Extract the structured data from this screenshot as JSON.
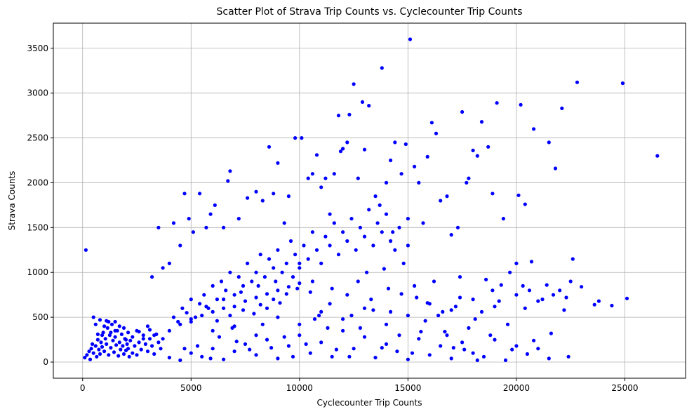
{
  "chart_data": {
    "type": "scatter",
    "title": "Scatter Plot of Strava Trip Counts vs. Cyclecounter Trip Counts",
    "xlabel": "Cyclecounter Trip Counts",
    "ylabel": "Strava Counts",
    "xlim": [
      -1350,
      27800
    ],
    "ylim": [
      -180,
      3780
    ],
    "x_ticks": [
      0,
      5000,
      10000,
      15000,
      20000,
      25000
    ],
    "x_tick_labels": [
      "0",
      "5000",
      "10000",
      "15000",
      "20000",
      "25000"
    ],
    "y_ticks": [
      0,
      500,
      1000,
      1500,
      2000,
      2500,
      3000,
      3500
    ],
    "y_tick_labels": [
      "0",
      "500",
      "1000",
      "1500",
      "2000",
      "2500",
      "3000",
      "3500"
    ],
    "grid": true,
    "marker_color": "#0000ff",
    "points": [
      [
        150,
        1250
      ],
      [
        500,
        500
      ],
      [
        900,
        300
      ],
      [
        1200,
        450
      ],
      [
        1500,
        350
      ],
      [
        2000,
        250
      ],
      [
        2500,
        350
      ],
      [
        3000,
        400
      ],
      [
        3200,
        950
      ],
      [
        3500,
        1500
      ],
      [
        3700,
        1050
      ],
      [
        4000,
        1100
      ],
      [
        4200,
        1550
      ],
      [
        4500,
        1300
      ],
      [
        4700,
        1880
      ],
      [
        4900,
        1600
      ],
      [
        5100,
        1450
      ],
      [
        5400,
        1880
      ],
      [
        5700,
        1500
      ],
      [
        5900,
        1650
      ],
      [
        6100,
        1750
      ],
      [
        6500,
        1500
      ],
      [
        6700,
        2020
      ],
      [
        6800,
        2130
      ],
      [
        7200,
        1600
      ],
      [
        7600,
        1830
      ],
      [
        8000,
        1900
      ],
      [
        8300,
        1800
      ],
      [
        8600,
        2400
      ],
      [
        8800,
        1880
      ],
      [
        9000,
        2220
      ],
      [
        9300,
        1550
      ],
      [
        9500,
        1850
      ],
      [
        9800,
        2500
      ],
      [
        10000,
        1100
      ],
      [
        10100,
        2500
      ],
      [
        10400,
        2050
      ],
      [
        10600,
        2100
      ],
      [
        10800,
        2310
      ],
      [
        11000,
        1950
      ],
      [
        11200,
        2050
      ],
      [
        11400,
        1650
      ],
      [
        11600,
        2100
      ],
      [
        11800,
        2750
      ],
      [
        11900,
        2350
      ],
      [
        12000,
        2380
      ],
      [
        12200,
        2450
      ],
      [
        12300,
        2760
      ],
      [
        12500,
        3100
      ],
      [
        12700,
        2050
      ],
      [
        12900,
        2900
      ],
      [
        13000,
        2370
      ],
      [
        13200,
        2860
      ],
      [
        13500,
        1850
      ],
      [
        13700,
        1750
      ],
      [
        13800,
        3280
      ],
      [
        14000,
        2000
      ],
      [
        14200,
        2250
      ],
      [
        14300,
        1450
      ],
      [
        14400,
        2450
      ],
      [
        14700,
        2100
      ],
      [
        14900,
        2430
      ],
      [
        15000,
        1600
      ],
      [
        15100,
        3600
      ],
      [
        15300,
        2180
      ],
      [
        15500,
        2000
      ],
      [
        15700,
        1550
      ],
      [
        15900,
        2290
      ],
      [
        16100,
        2670
      ],
      [
        16300,
        2550
      ],
      [
        16500,
        1800
      ],
      [
        16800,
        1850
      ],
      [
        17000,
        1420
      ],
      [
        17300,
        1500
      ],
      [
        17500,
        2790
      ],
      [
        17700,
        2000
      ],
      [
        17800,
        2050
      ],
      [
        18000,
        2360
      ],
      [
        18200,
        2300
      ],
      [
        18400,
        2680
      ],
      [
        18700,
        2400
      ],
      [
        18900,
        1880
      ],
      [
        19100,
        2890
      ],
      [
        19400,
        1600
      ],
      [
        20000,
        1100
      ],
      [
        20100,
        1860
      ],
      [
        20200,
        2870
      ],
      [
        20400,
        1760
      ],
      [
        20800,
        2600
      ],
      [
        21500,
        2450
      ],
      [
        21800,
        2160
      ],
      [
        22100,
        2830
      ],
      [
        22800,
        3120
      ],
      [
        24900,
        3110
      ],
      [
        26500,
        2300
      ],
      [
        100,
        50
      ],
      [
        200,
        80
      ],
      [
        300,
        120
      ],
      [
        350,
        30
      ],
      [
        400,
        150
      ],
      [
        450,
        200
      ],
      [
        500,
        100
      ],
      [
        600,
        180
      ],
      [
        650,
        60
      ],
      [
        700,
        250
      ],
      [
        750,
        140
      ],
      [
        800,
        90
      ],
      [
        850,
        220
      ],
      [
        900,
        170
      ],
      [
        950,
        330
      ],
      [
        1000,
        120
      ],
      [
        1050,
        260
      ],
      [
        1100,
        200
      ],
      [
        1150,
        380
      ],
      [
        1200,
        80
      ],
      [
        1250,
        300
      ],
      [
        1300,
        160
      ],
      [
        1350,
        420
      ],
      [
        1400,
        240
      ],
      [
        1450,
        110
      ],
      [
        1500,
        280
      ],
      [
        1550,
        190
      ],
      [
        1600,
        350
      ],
      [
        1650,
        70
      ],
      [
        1700,
        220
      ],
      [
        1750,
        140
      ],
      [
        1800,
        310
      ],
      [
        1850,
        180
      ],
      [
        1900,
        90
      ],
      [
        1950,
        260
      ],
      [
        2000,
        130
      ],
      [
        2050,
        200
      ],
      [
        2100,
        150
      ],
      [
        2150,
        60
      ],
      [
        2200,
        240
      ],
      [
        2300,
        100
      ],
      [
        2400,
        180
      ],
      [
        2500,
        80
      ],
      [
        2600,
        220
      ],
      [
        2700,
        140
      ],
      [
        2800,
        300
      ],
      [
        2900,
        200
      ],
      [
        3000,
        120
      ],
      [
        3100,
        260
      ],
      [
        3200,
        180
      ],
      [
        3300,
        90
      ],
      [
        3400,
        310
      ],
      [
        3500,
        220
      ],
      [
        3600,
        150
      ],
      [
        3700,
        260
      ],
      [
        600,
        420
      ],
      [
        700,
        310
      ],
      [
        800,
        470
      ],
      [
        1000,
        400
      ],
      [
        1100,
        460
      ],
      [
        1300,
        330
      ],
      [
        1500,
        450
      ],
      [
        1700,
        400
      ],
      [
        1900,
        380
      ],
      [
        2100,
        330
      ],
      [
        2300,
        280
      ],
      [
        2600,
        340
      ],
      [
        2800,
        260
      ],
      [
        3100,
        360
      ],
      [
        3300,
        300
      ],
      [
        4000,
        350
      ],
      [
        4200,
        500
      ],
      [
        4400,
        450
      ],
      [
        4600,
        600
      ],
      [
        4800,
        550
      ],
      [
        5000,
        700
      ],
      [
        5200,
        500
      ],
      [
        5400,
        650
      ],
      [
        5600,
        750
      ],
      [
        5800,
        600
      ],
      [
        6000,
        850
      ],
      [
        6200,
        700
      ],
      [
        6400,
        900
      ],
      [
        6600,
        800
      ],
      [
        6800,
        1000
      ],
      [
        7000,
        750
      ],
      [
        7200,
        950
      ],
      [
        7400,
        850
      ],
      [
        7600,
        1100
      ],
      [
        7800,
        900
      ],
      [
        8000,
        1000
      ],
      [
        8200,
        1200
      ],
      [
        8400,
        950
      ],
      [
        8600,
        1150
      ],
      [
        8800,
        1050
      ],
      [
        9000,
        1250
      ],
      [
        9200,
        1000
      ],
      [
        9400,
        1100
      ],
      [
        9600,
        1350
      ],
      [
        9800,
        1200
      ],
      [
        10000,
        1050
      ],
      [
        10200,
        1300
      ],
      [
        10400,
        1150
      ],
      [
        10600,
        1450
      ],
      [
        10800,
        1250
      ],
      [
        11000,
        1100
      ],
      [
        11200,
        1400
      ],
      [
        11400,
        1300
      ],
      [
        11600,
        1550
      ],
      [
        11800,
        1200
      ],
      [
        12000,
        1450
      ],
      [
        12200,
        1350
      ],
      [
        12400,
        1600
      ],
      [
        12600,
        1250
      ],
      [
        12800,
        1500
      ],
      [
        13000,
        1400
      ],
      [
        13200,
        1700
      ],
      [
        13400,
        1300
      ],
      [
        13600,
        1550
      ],
      [
        13800,
        1450
      ],
      [
        14000,
        1650
      ],
      [
        14200,
        1350
      ],
      [
        14400,
        1250
      ],
      [
        14600,
        1500
      ],
      [
        14800,
        1100
      ],
      [
        15000,
        1300
      ],
      [
        4500,
        420
      ],
      [
        5000,
        480
      ],
      [
        5500,
        520
      ],
      [
        6000,
        560
      ],
      [
        6500,
        600
      ],
      [
        7000,
        620
      ],
      [
        7500,
        680
      ],
      [
        8000,
        720
      ],
      [
        8500,
        760
      ],
      [
        9000,
        800
      ],
      [
        9500,
        840
      ],
      [
        10000,
        880
      ],
      [
        6200,
        460
      ],
      [
        6800,
        520
      ],
      [
        7400,
        580
      ],
      [
        8200,
        640
      ],
      [
        8800,
        700
      ],
      [
        9400,
        760
      ],
      [
        9900,
        820
      ],
      [
        10500,
        780
      ],
      [
        4000,
        50
      ],
      [
        4500,
        20
      ],
      [
        5000,
        100
      ],
      [
        5500,
        60
      ],
      [
        6000,
        150
      ],
      [
        6500,
        30
      ],
      [
        7000,
        120
      ],
      [
        7500,
        200
      ],
      [
        8000,
        80
      ],
      [
        8500,
        250
      ],
      [
        9000,
        40
      ],
      [
        9500,
        180
      ],
      [
        10000,
        300
      ],
      [
        10500,
        100
      ],
      [
        11000,
        220
      ],
      [
        11500,
        60
      ],
      [
        12000,
        350
      ],
      [
        12500,
        150
      ],
      [
        13000,
        280
      ],
      [
        13500,
        50
      ],
      [
        14000,
        200
      ],
      [
        14500,
        120
      ],
      [
        15000,
        30
      ],
      [
        15500,
        260
      ],
      [
        16000,
        80
      ],
      [
        16500,
        180
      ],
      [
        17000,
        40
      ],
      [
        17500,
        220
      ],
      [
        18000,
        100
      ],
      [
        18500,
        60
      ],
      [
        19000,
        250
      ],
      [
        19500,
        20
      ],
      [
        20000,
        180
      ],
      [
        20500,
        90
      ],
      [
        21000,
        150
      ],
      [
        21500,
        40
      ],
      [
        5000,
        450
      ],
      [
        6000,
        350
      ],
      [
        7000,
        400
      ],
      [
        8000,
        300
      ],
      [
        9000,
        500
      ],
      [
        10000,
        420
      ],
      [
        11000,
        560
      ],
      [
        12000,
        480
      ],
      [
        13000,
        600
      ],
      [
        14000,
        420
      ],
      [
        15000,
        520
      ],
      [
        16000,
        650
      ],
      [
        17000,
        580
      ],
      [
        18000,
        700
      ],
      [
        19000,
        620
      ],
      [
        20000,
        750
      ],
      [
        21000,
        680
      ],
      [
        22000,
        800
      ],
      [
        22500,
        900
      ],
      [
        22600,
        1150
      ],
      [
        23600,
        640
      ],
      [
        23800,
        680
      ],
      [
        24400,
        630
      ],
      [
        25100,
        710
      ],
      [
        21700,
        750
      ],
      [
        20700,
        1120
      ],
      [
        19700,
        1000
      ],
      [
        20300,
        850
      ],
      [
        18900,
        800
      ],
      [
        17400,
        950
      ],
      [
        16200,
        900
      ],
      [
        15300,
        850
      ],
      [
        14100,
        820
      ],
      [
        13300,
        700
      ],
      [
        12200,
        750
      ],
      [
        11400,
        650
      ],
      [
        10600,
        900
      ],
      [
        9700,
        950
      ],
      [
        8900,
        900
      ],
      [
        8100,
        850
      ],
      [
        7300,
        780
      ],
      [
        6500,
        700
      ],
      [
        5700,
        620
      ],
      [
        15200,
        100
      ],
      [
        15600,
        340
      ],
      [
        16400,
        520
      ],
      [
        16800,
        300
      ],
      [
        17200,
        620
      ],
      [
        17600,
        140
      ],
      [
        18400,
        560
      ],
      [
        18800,
        300
      ],
      [
        19200,
        680
      ],
      [
        19600,
        420
      ],
      [
        20400,
        600
      ],
      [
        20800,
        240
      ],
      [
        21200,
        700
      ],
      [
        21600,
        320
      ],
      [
        22200,
        580
      ],
      [
        22400,
        60
      ],
      [
        23000,
        840
      ],
      [
        19800,
        140
      ],
      [
        18200,
        20
      ],
      [
        17800,
        380
      ],
      [
        12400,
        520
      ],
      [
        12800,
        380
      ],
      [
        13400,
        580
      ],
      [
        13800,
        160
      ],
      [
        14200,
        560
      ],
      [
        14600,
        300
      ],
      [
        15400,
        720
      ],
      [
        15800,
        460
      ],
      [
        16600,
        560
      ],
      [
        17400,
        720
      ],
      [
        18600,
        920
      ],
      [
        19300,
        860
      ],
      [
        20600,
        800
      ],
      [
        21400,
        860
      ],
      [
        22300,
        720
      ],
      [
        7100,
        230
      ],
      [
        7700,
        140
      ],
      [
        8300,
        420
      ],
      [
        8700,
        160
      ],
      [
        9300,
        280
      ],
      [
        9700,
        60
      ],
      [
        10300,
        200
      ],
      [
        10700,
        480
      ],
      [
        11300,
        380
      ],
      [
        11700,
        140
      ],
      [
        12300,
        60
      ],
      [
        6300,
        280
      ],
      [
        5300,
        180
      ],
      [
        4700,
        150
      ],
      [
        5900,
        40
      ],
      [
        6900,
        380
      ],
      [
        7900,
        540
      ],
      [
        8500,
        600
      ],
      [
        9100,
        660
      ],
      [
        10900,
        520
      ],
      [
        11500,
        820
      ],
      [
        12700,
        900
      ],
      [
        13100,
        1000
      ],
      [
        13900,
        1040
      ],
      [
        14700,
        760
      ],
      [
        15900,
        660
      ],
      [
        16700,
        340
      ],
      [
        17100,
        160
      ],
      [
        18100,
        480
      ]
    ]
  }
}
